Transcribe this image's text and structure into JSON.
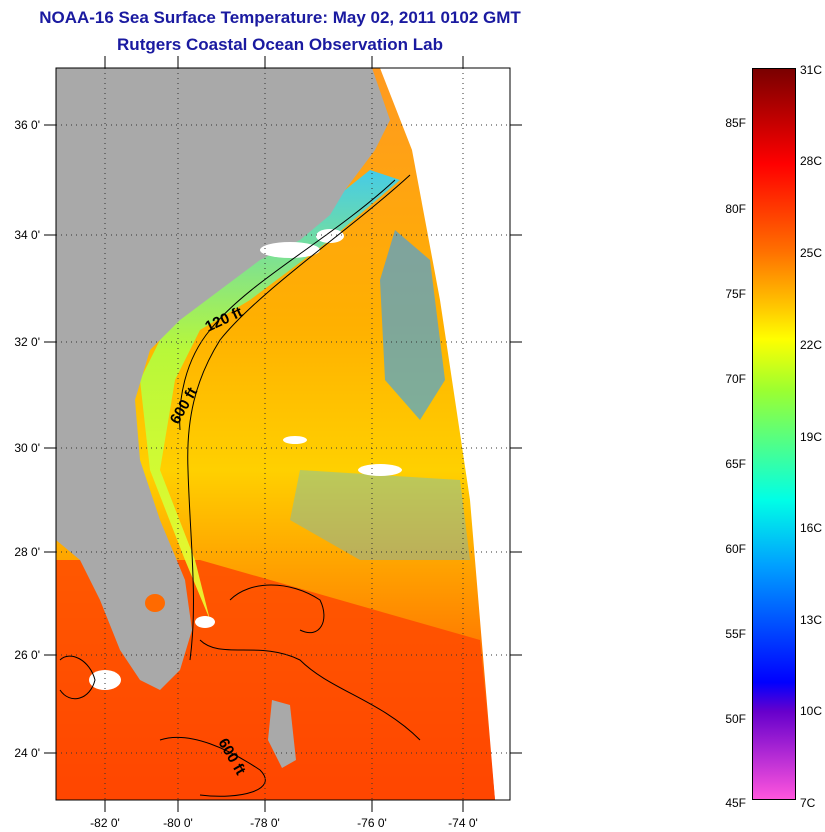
{
  "title_line1": "NOAA-16 Sea Surface Temperature:  May 02, 2011 0102 GMT",
  "title_line2": "Rutgers Coastal Ocean Observation Lab",
  "lat_labels": [
    "36 0'",
    "34 0'",
    "32 0'",
    "30 0'",
    "28 0'",
    "26 0'",
    "24 0'"
  ],
  "lon_labels": [
    "-82 0'",
    "-80 0'",
    "-78 0'",
    "-76 0'",
    "-74 0'"
  ],
  "contour_labels": [
    "120 ft",
    "600 ft",
    "600 ft"
  ],
  "colorbar": {
    "fahrenheit": [
      "85F",
      "80F",
      "75F",
      "70F",
      "65F",
      "60F",
      "55F",
      "50F",
      "45F"
    ],
    "celsius": [
      "31C",
      "28C",
      "25C",
      "22C",
      "19C",
      "16C",
      "13C",
      "10C",
      "7C"
    ]
  },
  "colors": {
    "title": "#1a1aa0",
    "land": "#a9a9a9",
    "cloud": "#ffffff",
    "warm": "#ff4a00",
    "cool": "#2aa0ff"
  }
}
